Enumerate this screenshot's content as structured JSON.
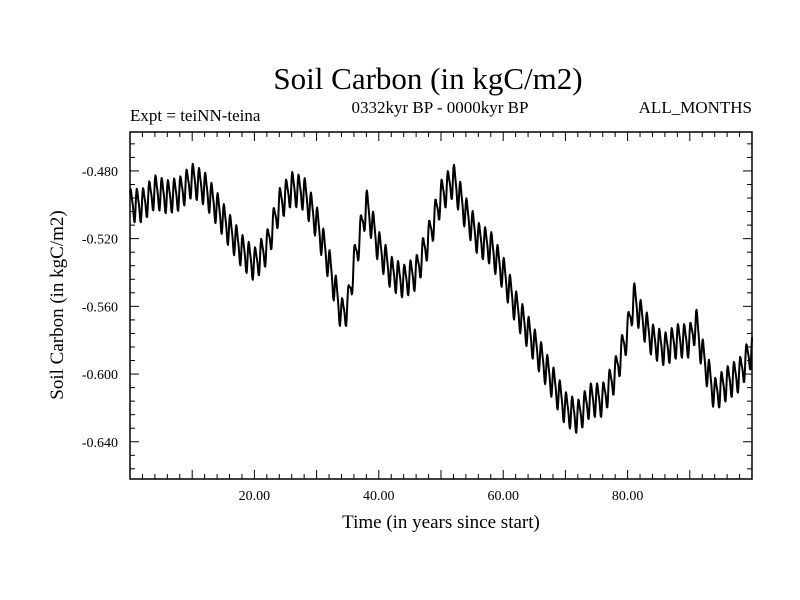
{
  "chart_data": {
    "type": "line",
    "title": "Soil Carbon (in kgC/m2)",
    "subtitle_left": "Expt = teiNN-teina",
    "subtitle_center": "0332kyr BP - 0000kyr BP",
    "subtitle_right": "ALL_MONTHS",
    "xlabel": "Time (in years since start)",
    "ylabel": "Soil Carbon (in kgC/m2)",
    "xlim": [
      0,
      100
    ],
    "ylim": [
      -0.662,
      -0.457
    ],
    "xticks": [
      20,
      40,
      60,
      80
    ],
    "xtick_labels": [
      "20.00",
      "40.00",
      "60.00",
      "80.00"
    ],
    "yticks": [
      -0.48,
      -0.52,
      -0.56,
      -0.6,
      -0.64
    ],
    "ytick_labels": [
      "-0.480",
      "-0.520",
      "-0.560",
      "-0.600",
      "-0.640"
    ],
    "grid": false,
    "series": [
      {
        "name": "Soil Carbon",
        "color": "#000000",
        "seasonal_amplitude": 0.009,
        "x": [
          0,
          2,
          4,
          6,
          8,
          10,
          12,
          14,
          16,
          18,
          20,
          22,
          24,
          26,
          28,
          30,
          32,
          34,
          35,
          36,
          38,
          40,
          42,
          44,
          46,
          48,
          50,
          52,
          54,
          56,
          58,
          60,
          62,
          64,
          66,
          68,
          70,
          72,
          74,
          76,
          78,
          80,
          81,
          82,
          84,
          86,
          88,
          90,
          91,
          92,
          94,
          96,
          98,
          100
        ],
        "y": [
          -0.5,
          -0.5,
          -0.492,
          -0.495,
          -0.493,
          -0.485,
          -0.49,
          -0.502,
          -0.515,
          -0.527,
          -0.535,
          -0.525,
          -0.5,
          -0.49,
          -0.493,
          -0.51,
          -0.535,
          -0.565,
          -0.56,
          -0.535,
          -0.5,
          -0.525,
          -0.54,
          -0.545,
          -0.54,
          -0.52,
          -0.495,
          -0.485,
          -0.505,
          -0.52,
          -0.525,
          -0.54,
          -0.56,
          -0.575,
          -0.59,
          -0.605,
          -0.62,
          -0.625,
          -0.615,
          -0.615,
          -0.6,
          -0.575,
          -0.555,
          -0.565,
          -0.58,
          -0.585,
          -0.58,
          -0.58,
          -0.57,
          -0.588,
          -0.612,
          -0.605,
          -0.6,
          -0.585
        ]
      }
    ]
  }
}
